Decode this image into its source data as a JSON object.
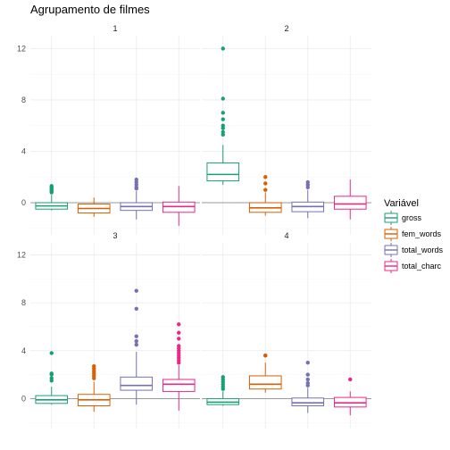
{
  "chart_data": {
    "type": "boxplot",
    "title": "Agrupamento de filmes",
    "xlabel": "",
    "ylabel": "",
    "ylim": [
      -2.5,
      13.0
    ],
    "yticks": [
      0,
      4,
      8,
      12
    ],
    "grid": true,
    "legend": {
      "title": "Variável",
      "placement": "right",
      "entries": [
        "gross",
        "fem_words",
        "total_words",
        "total_charc"
      ]
    },
    "colors": {
      "gross": "#1b9e77",
      "fem_words": "#d95f02",
      "total_words": "#7570b3",
      "total_charc": "#e7298a"
    },
    "panels": [
      {
        "label": "1",
        "boxes": [
          {
            "series": "gross",
            "min": -0.6,
            "q1": -0.5,
            "median": -0.25,
            "q3": 0.0,
            "max": 0.6,
            "outliers": [
              0.8,
              0.9,
              1.0,
              1.1,
              1.2,
              1.3
            ]
          },
          {
            "series": "fem_words",
            "min": -1.1,
            "q1": -0.8,
            "median": -0.45,
            "q3": -0.1,
            "max": 0.4,
            "outliers": []
          },
          {
            "series": "total_words",
            "min": -1.3,
            "q1": -0.6,
            "median": -0.3,
            "q3": 0.0,
            "max": 0.9,
            "outliers": [
              1.1,
              1.2,
              1.4,
              1.6,
              1.8
            ]
          },
          {
            "series": "total_charc",
            "min": -1.8,
            "q1": -0.75,
            "median": -0.3,
            "q3": 0.05,
            "max": 1.3,
            "outliers": []
          }
        ]
      },
      {
        "label": "2",
        "boxes": [
          {
            "series": "gross",
            "min": 1.4,
            "q1": 1.7,
            "median": 2.2,
            "q3": 3.1,
            "max": 4.5,
            "outliers": [
              5.3,
              5.5,
              5.8,
              6.0,
              6.5,
              7.0,
              8.1,
              12.0
            ]
          },
          {
            "series": "fem_words",
            "min": -1.0,
            "q1": -0.75,
            "median": -0.4,
            "q3": 0.0,
            "max": 0.8,
            "outliers": [
              1.0,
              1.5,
              2.0
            ]
          },
          {
            "series": "total_words",
            "min": -1.2,
            "q1": -0.7,
            "median": -0.3,
            "q3": 0.05,
            "max": 1.0,
            "outliers": [
              1.2,
              1.4,
              1.6
            ]
          },
          {
            "series": "total_charc",
            "min": -1.3,
            "q1": -0.5,
            "median": -0.1,
            "q3": 0.5,
            "max": 1.8,
            "outliers": []
          }
        ]
      },
      {
        "label": "3",
        "boxes": [
          {
            "series": "gross",
            "min": -0.5,
            "q1": -0.4,
            "median": -0.1,
            "q3": 0.25,
            "max": 1.0,
            "outliers": [
              1.5,
              1.7,
              2.0,
              2.1,
              3.8
            ]
          },
          {
            "series": "fem_words",
            "min": -1.1,
            "q1": -0.6,
            "median": -0.1,
            "q3": 0.35,
            "max": 1.4,
            "outliers": [
              1.7,
              1.9,
              2.1,
              2.3,
              2.5,
              2.7
            ]
          },
          {
            "series": "total_words",
            "min": -0.5,
            "q1": 0.7,
            "median": 1.1,
            "q3": 1.8,
            "max": 3.9,
            "outliers": [
              4.5,
              4.8,
              5.2,
              7.5,
              9.0
            ]
          },
          {
            "series": "total_charc",
            "min": -1.0,
            "q1": 0.6,
            "median": 1.2,
            "q3": 1.6,
            "max": 2.8,
            "outliers": [
              3.0,
              3.2,
              3.4,
              3.6,
              3.8,
              4.0,
              4.2,
              4.4,
              5.0,
              5.5,
              6.2
            ]
          }
        ]
      },
      {
        "label": "4",
        "boxes": [
          {
            "series": "gross",
            "min": -0.6,
            "q1": -0.5,
            "median": -0.3,
            "q3": 0.0,
            "max": 0.6,
            "outliers": [
              0.8,
              1.0,
              1.2,
              1.4,
              1.6,
              1.8
            ]
          },
          {
            "series": "fem_words",
            "min": 0.5,
            "q1": 0.8,
            "median": 1.2,
            "q3": 1.9,
            "max": 3.0,
            "outliers": [
              3.6,
              3.6
            ]
          },
          {
            "series": "total_words",
            "min": -1.2,
            "q1": -0.6,
            "median": -0.35,
            "q3": 0.05,
            "max": 0.9,
            "outliers": [
              1.1,
              1.3,
              1.6,
              2.0,
              3.0
            ]
          },
          {
            "series": "total_charc",
            "min": -1.4,
            "q1": -0.7,
            "median": -0.35,
            "q3": 0.1,
            "max": 0.6,
            "outliers": [
              1.6
            ]
          }
        ]
      }
    ]
  }
}
